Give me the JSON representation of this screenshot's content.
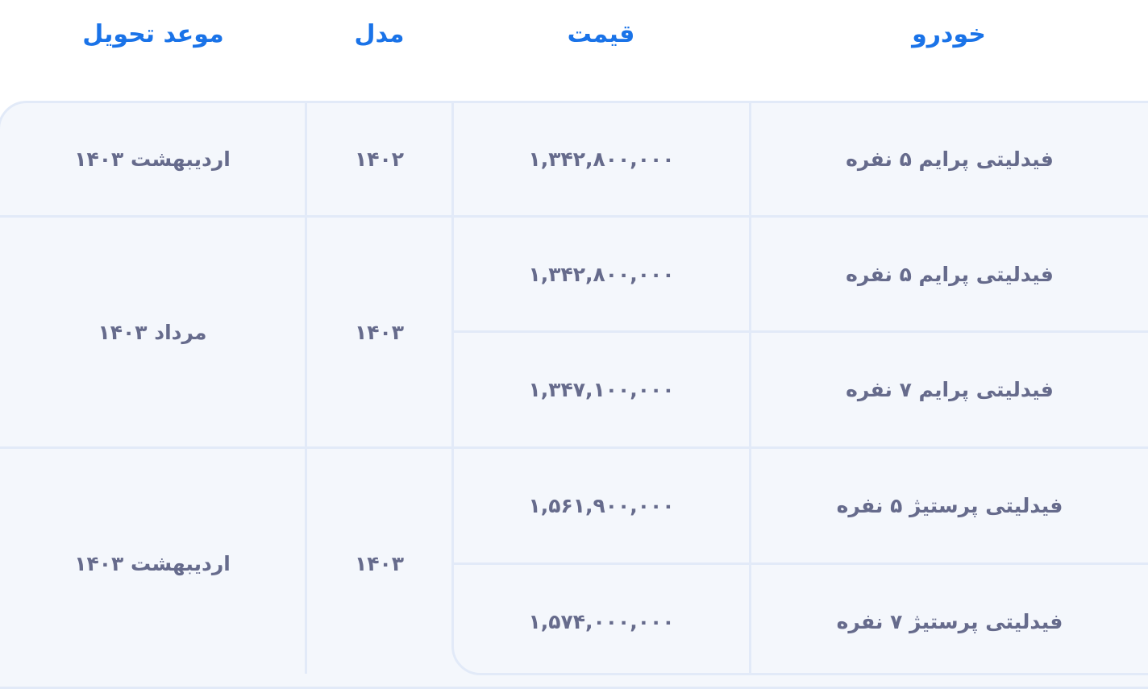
{
  "colors": {
    "header": "#1a73e8",
    "text": "#666b8c",
    "cell_bg": "#f4f7fc",
    "border": "#e2eaf8"
  },
  "headers": {
    "car": "خودرو",
    "price": "قیمت",
    "model": "مدل",
    "delivery": "موعد تحویل"
  },
  "groups": [
    {
      "delivery": "اردیبهشت ۱۴۰۳",
      "model": "۱۴۰۲",
      "items": [
        {
          "car": "فیدلیتی پرایم ۵ نفره",
          "price": "۱,۳۴۲,۸۰۰,۰۰۰"
        }
      ]
    },
    {
      "delivery": "مرداد ۱۴۰۳",
      "model": "۱۴۰۳",
      "items": [
        {
          "car": "فیدلیتی پرایم ۵ نفره",
          "price": "۱,۳۴۲,۸۰۰,۰۰۰"
        },
        {
          "car": "فیدلیتی پرایم ۷ نفره",
          "price": "۱,۳۴۷,۱۰۰,۰۰۰"
        }
      ]
    },
    {
      "delivery": "اردیبهشت ۱۴۰۳",
      "model": "۱۴۰۳",
      "items": [
        {
          "car": "فیدلیتی پرستیژ ۵ نفره",
          "price": "۱,۵۶۱,۹۰۰,۰۰۰"
        },
        {
          "car": "فیدلیتی پرستیژ ۷ نفره",
          "price": "۱,۵۷۴,۰۰۰,۰۰۰"
        }
      ]
    }
  ]
}
